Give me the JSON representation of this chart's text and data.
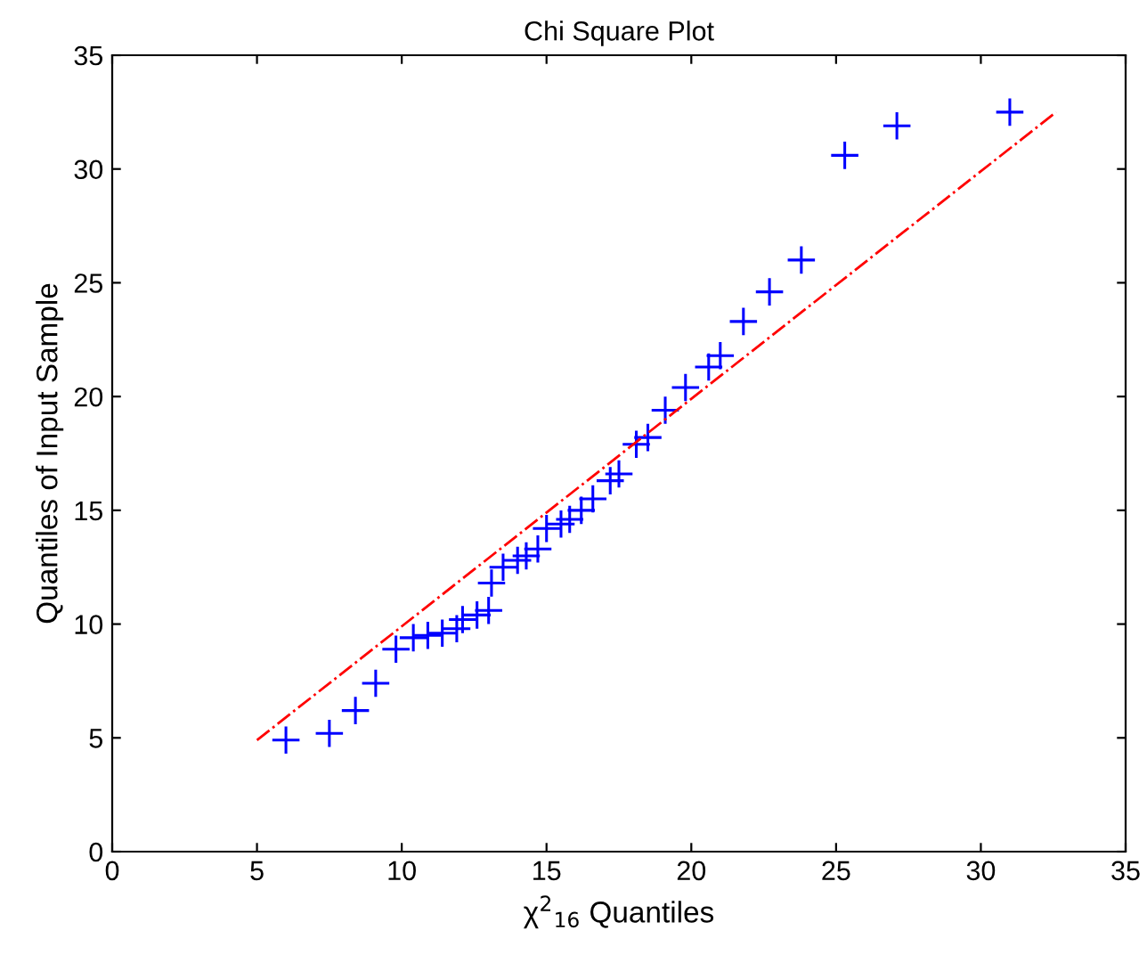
{
  "chart_data": {
    "type": "scatter",
    "title": "Chi Square Plot",
    "xlabel": "χ$^{2}$$_{16}$ Quantiles",
    "ylabel": "Quantiles of Input Sample",
    "xlim": [
      0,
      35
    ],
    "ylim": [
      0,
      35
    ],
    "xticks": [
      0,
      5,
      10,
      15,
      20,
      25,
      30,
      35
    ],
    "yticks": [
      0,
      5,
      10,
      15,
      20,
      25,
      30,
      35
    ],
    "grid": false,
    "series": [
      {
        "color": "#0000ff",
        "marker": "cross",
        "x": [
          6.0,
          7.5,
          8.4,
          9.1,
          9.8,
          10.4,
          10.9,
          11.4,
          11.9,
          12.1,
          12.6,
          13.0,
          13.1,
          13.5,
          14.0,
          14.3,
          14.7,
          15.0,
          15.5,
          15.8,
          16.2,
          16.6,
          17.2,
          17.5,
          18.1,
          18.5,
          19.1,
          19.8,
          20.6,
          21.0,
          21.8,
          22.7,
          23.8,
          25.3,
          27.1,
          31.0
        ],
        "values": [
          4.9,
          5.2,
          6.2,
          7.4,
          8.9,
          9.4,
          9.5,
          9.6,
          9.8,
          10.2,
          10.4,
          10.6,
          11.8,
          12.5,
          12.8,
          13.0,
          13.3,
          14.2,
          14.4,
          14.6,
          15.0,
          15.5,
          16.3,
          16.6,
          17.9,
          18.2,
          19.4,
          20.4,
          21.3,
          21.8,
          23.3,
          24.6,
          26.0,
          30.6,
          31.9,
          32.5
        ]
      },
      {
        "type": "line",
        "color": "#ff0000",
        "line_style": "dashdot",
        "marker": "none",
        "x": [
          5.0,
          32.6
        ],
        "values": [
          4.9,
          32.5
        ]
      }
    ]
  }
}
